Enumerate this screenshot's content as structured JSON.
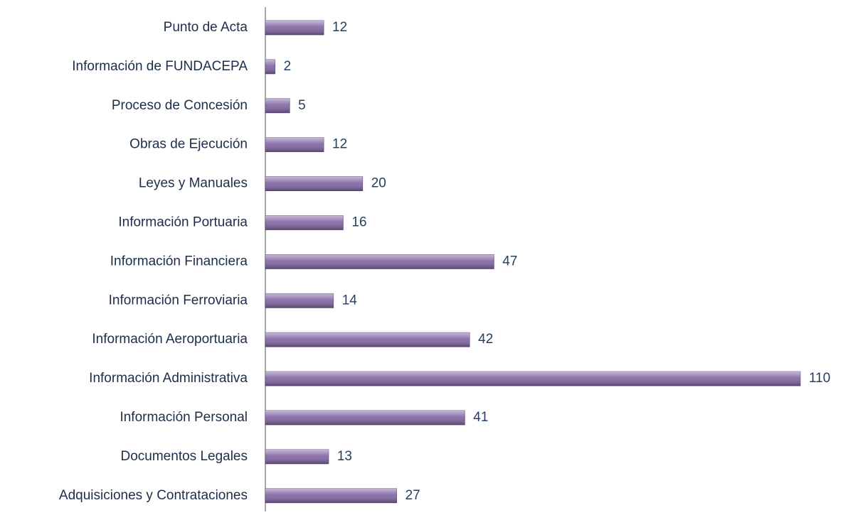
{
  "chart_data": {
    "type": "bar",
    "orientation": "horizontal",
    "categories": [
      "Punto de Acta",
      "Información de FUNDACEPA",
      "Proceso de Concesión",
      "Obras de Ejecución",
      "Leyes y Manuales",
      "Información Portuaria",
      "Información Financiera",
      "Información Ferroviaria",
      "Información Aeroportuaria",
      "Información Administrativa",
      "Información Personal",
      "Documentos Legales",
      "Adquisiciones y Contrataciones"
    ],
    "values": [
      12,
      2,
      5,
      12,
      20,
      16,
      47,
      14,
      42,
      110,
      41,
      13,
      27
    ],
    "color": "#8064a2"
  }
}
